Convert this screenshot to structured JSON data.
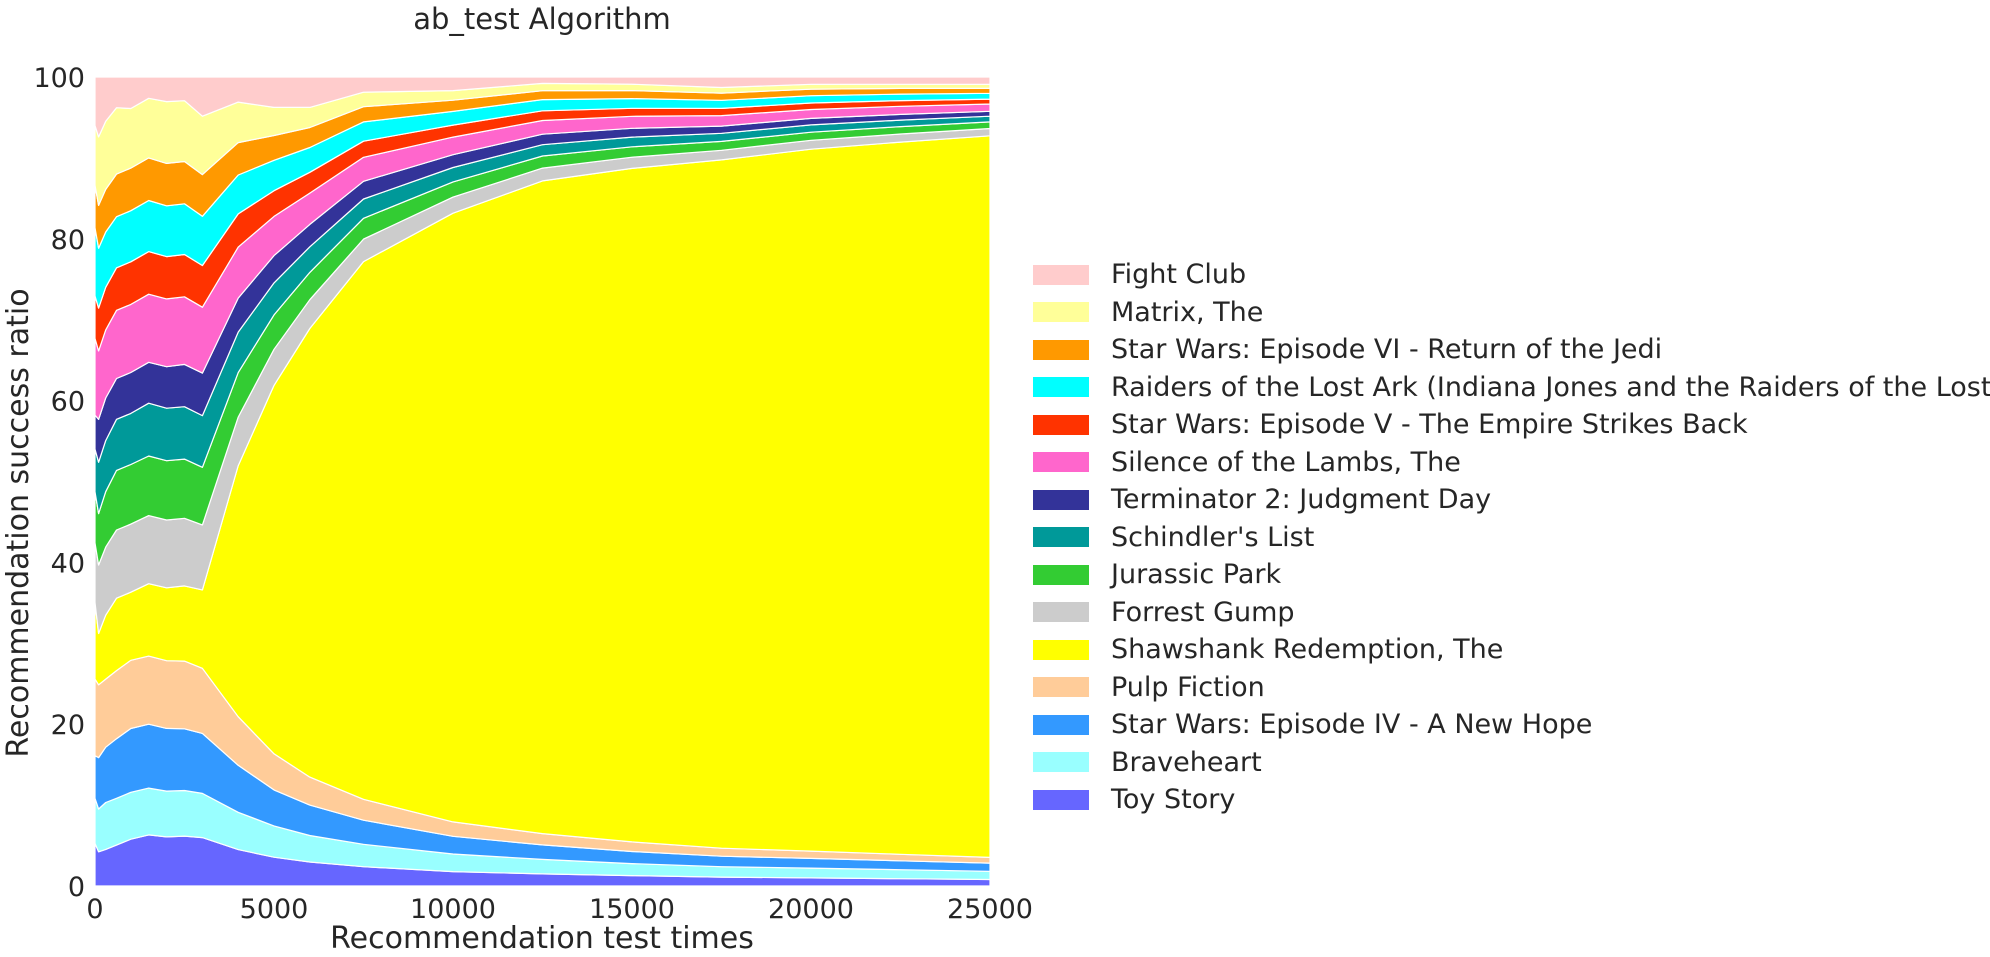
{
  "chart_data": {
    "type": "area",
    "title": "ab_test Algorithm",
    "xlabel": "Recommendation test times",
    "ylabel": "Recommendation success ratio",
    "xlim": [
      0,
      25000
    ],
    "ylim": [
      0,
      100
    ],
    "x_ticks": [
      "0",
      "5000",
      "10000",
      "15000",
      "20000",
      "25000"
    ],
    "y_ticks": [
      "0",
      "20",
      "40",
      "60",
      "80",
      "100"
    ],
    "grid": false,
    "legend_position": "right",
    "stacking": "bottom-to-top follows series order; legend lists top-to-bottom",
    "x": [
      1,
      100,
      300,
      600,
      1000,
      1500,
      2000,
      2500,
      3000,
      4000,
      5000,
      6000,
      7500,
      10000,
      12500,
      15000,
      17500,
      20000,
      22500,
      25000
    ],
    "series": [
      {
        "name": "Toy Story",
        "color": "#6666ff",
        "values": [
          5.0,
          4.0,
          4.3,
          4.8,
          5.5,
          6.0,
          5.8,
          5.9,
          5.8,
          4.5,
          3.6,
          3.0,
          2.4,
          1.8,
          1.5,
          1.3,
          1.1,
          1.0,
          0.9,
          0.8
        ]
      },
      {
        "name": "Braveheart",
        "color": "#99ffff",
        "values": [
          5.3,
          5.0,
          5.5,
          5.5,
          5.5,
          5.5,
          5.4,
          5.4,
          5.3,
          4.6,
          3.9,
          3.3,
          2.8,
          2.2,
          1.8,
          1.5,
          1.3,
          1.2,
          1.1,
          1.0
        ]
      },
      {
        "name": "Star Wars: Episode IV - A New Hope",
        "color": "#3399ff",
        "values": [
          5.0,
          6.0,
          6.5,
          7.0,
          7.5,
          7.5,
          7.4,
          7.3,
          7.2,
          5.8,
          4.5,
          3.8,
          3.0,
          2.2,
          1.8,
          1.5,
          1.3,
          1.2,
          1.1,
          1.0
        ]
      },
      {
        "name": "Pulp Fiction",
        "color": "#ffcc99",
        "values": [
          9.0,
          8.5,
          8.0,
          8.0,
          8.0,
          8.0,
          8.0,
          8.0,
          7.8,
          6.0,
          4.5,
          3.5,
          2.6,
          1.8,
          1.4,
          1.2,
          1.0,
          0.9,
          0.8,
          0.7
        ]
      },
      {
        "name": "Shawshank Redemption, The",
        "color": "#ffff00",
        "values": [
          9.0,
          6.0,
          7.5,
          8.5,
          8.0,
          8.5,
          8.6,
          8.9,
          9.4,
          31.0,
          46.0,
          56.0,
          67.0,
          76.0,
          81.0,
          84.0,
          85.5,
          86.5,
          87.5,
          88.3
        ]
      },
      {
        "name": "Forrest Gump",
        "color": "#cccccc",
        "values": [
          7.0,
          8.0,
          8.0,
          8.0,
          8.0,
          8.0,
          8.0,
          8.0,
          7.8,
          6.0,
          4.5,
          3.6,
          2.8,
          2.0,
          1.6,
          1.4,
          1.2,
          1.1,
          1.0,
          0.9
        ]
      },
      {
        "name": "Jurassic Park",
        "color": "#33cc33",
        "values": [
          6.0,
          6.0,
          6.5,
          7.0,
          7.0,
          7.0,
          7.0,
          7.0,
          6.9,
          5.5,
          4.3,
          3.4,
          2.6,
          1.9,
          1.5,
          1.3,
          1.1,
          1.0,
          0.9,
          0.8
        ]
      },
      {
        "name": "Schindler's List",
        "color": "#009999",
        "values": [
          5.0,
          6.0,
          6.0,
          6.0,
          6.0,
          6.2,
          6.2,
          6.2,
          6.2,
          5.0,
          4.0,
          3.2,
          2.4,
          1.8,
          1.4,
          1.2,
          1.0,
          0.9,
          0.8,
          0.7
        ]
      },
      {
        "name": "Terminator 2: Judgment Day",
        "color": "#333399",
        "values": [
          4.0,
          5.0,
          5.0,
          4.8,
          4.8,
          4.8,
          4.9,
          5.0,
          5.1,
          4.2,
          3.4,
          2.8,
          2.2,
          1.6,
          1.3,
          1.1,
          0.9,
          0.8,
          0.7,
          0.6
        ]
      },
      {
        "name": "Silence of the Lambs, The",
        "color": "#ff66cc",
        "values": [
          9.0,
          8.0,
          8.0,
          8.0,
          8.0,
          8.0,
          8.0,
          8.0,
          7.9,
          6.3,
          4.9,
          3.9,
          3.0,
          2.2,
          1.7,
          1.5,
          1.3,
          1.1,
          1.0,
          0.9
        ]
      },
      {
        "name": "Star Wars: Episode V - The Empire Strikes Back",
        "color": "#ff3300",
        "values": [
          5.0,
          5.0,
          5.0,
          5.0,
          5.0,
          5.0,
          5.0,
          5.0,
          5.0,
          4.1,
          3.2,
          2.6,
          2.0,
          1.5,
          1.2,
          1.0,
          0.9,
          0.8,
          0.7,
          0.6
        ]
      },
      {
        "name": "Raiders of the Lost Ark (Indiana Jones and the Raiders of the Lost Ark)",
        "color": "#00ffff",
        "values": [
          8.0,
          7.0,
          6.5,
          6.0,
          6.0,
          6.0,
          6.0,
          6.0,
          5.9,
          4.8,
          3.8,
          3.1,
          2.4,
          1.7,
          1.4,
          1.2,
          1.0,
          0.9,
          0.8,
          0.7
        ]
      },
      {
        "name": "Star Wars: Episode VI - Return of the Jedi",
        "color": "#ff9900",
        "values": [
          5.0,
          5.0,
          5.0,
          5.0,
          5.0,
          5.0,
          5.0,
          5.0,
          5.0,
          4.0,
          3.1,
          2.5,
          1.9,
          1.4,
          1.1,
          1.0,
          0.9,
          0.8,
          0.7,
          0.6
        ]
      },
      {
        "name": "Matrix, The",
        "color": "#ffff99",
        "values": [
          7.0,
          8.0,
          8.0,
          7.8,
          7.0,
          7.0,
          7.3,
          7.2,
          7.0,
          5.0,
          3.5,
          2.5,
          1.8,
          1.2,
          0.9,
          0.8,
          0.7,
          0.6,
          0.5,
          0.5
        ]
      },
      {
        "name": "Fight Club",
        "color": "#ffcccc",
        "values": [
          5.7,
          7.0,
          5.2,
          3.6,
          3.7,
          2.5,
          2.9,
          2.8,
          4.7,
          3.1,
          3.8,
          3.8,
          1.9,
          1.7,
          0.8,
          0.9,
          1.3,
          0.9,
          0.9,
          0.9
        ]
      }
    ]
  }
}
